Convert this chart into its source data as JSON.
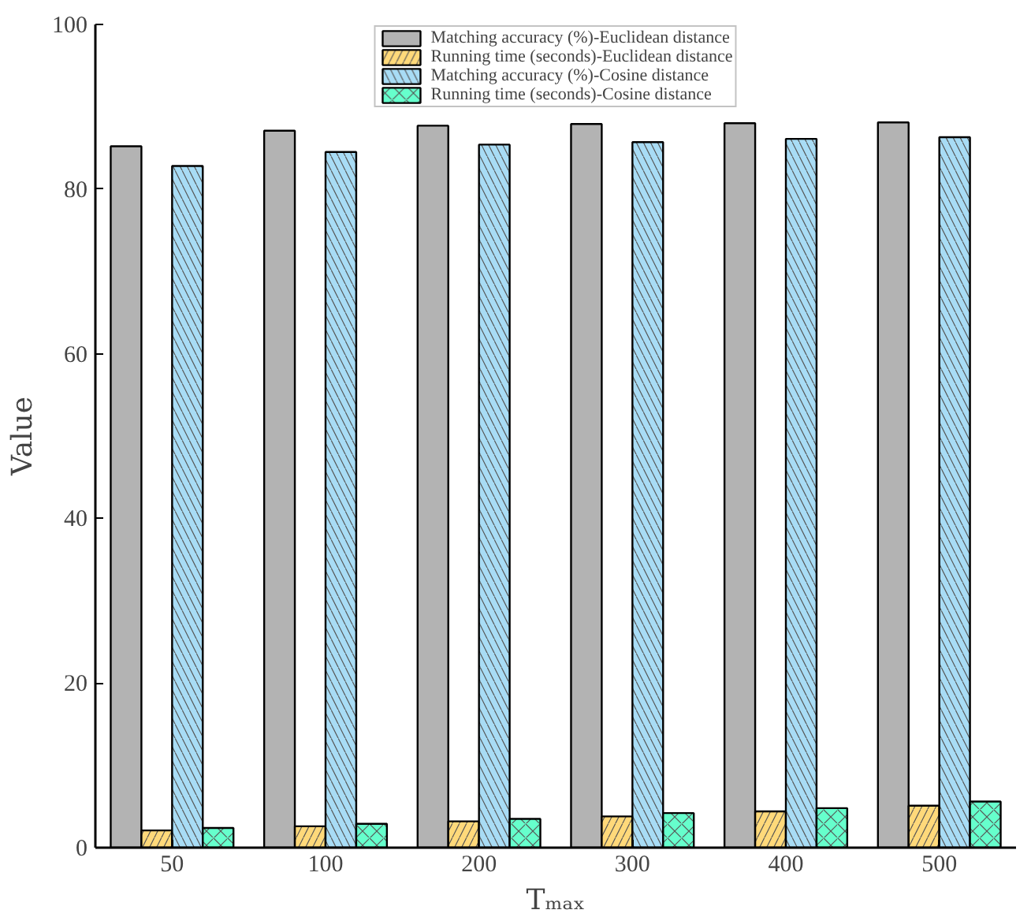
{
  "chart_data": {
    "type": "bar",
    "xlabel": "Tₘₐₓ",
    "ylabel": "Value",
    "categories": [
      "50",
      "100",
      "200",
      "300",
      "400",
      "500"
    ],
    "series": [
      {
        "name": "Matching accuracy (%)-Euclidean distance",
        "color": "#b3b3b3",
        "values": [
          85.2,
          87.1,
          87.7,
          87.9,
          88.0,
          88.1
        ]
      },
      {
        "name": "Running time (seconds)-Euclidean distance",
        "color": "#ffd97a",
        "values": [
          2.1,
          2.6,
          3.2,
          3.8,
          4.4,
          5.1
        ]
      },
      {
        "name": "Matching accuracy (%)-Cosine distance",
        "color": "#a8dcf5",
        "values": [
          82.8,
          84.5,
          85.4,
          85.7,
          86.1,
          86.3
        ]
      },
      {
        "name": "Running time (seconds)-Cosine distance",
        "color": "#66ffcc",
        "values": [
          2.4,
          2.9,
          3.5,
          4.2,
          4.8,
          5.6
        ]
      }
    ],
    "ylim": [
      0,
      100
    ],
    "yticks": [
      0,
      20,
      40,
      60,
      80,
      100
    ],
    "grid": false,
    "legend": "top"
  }
}
